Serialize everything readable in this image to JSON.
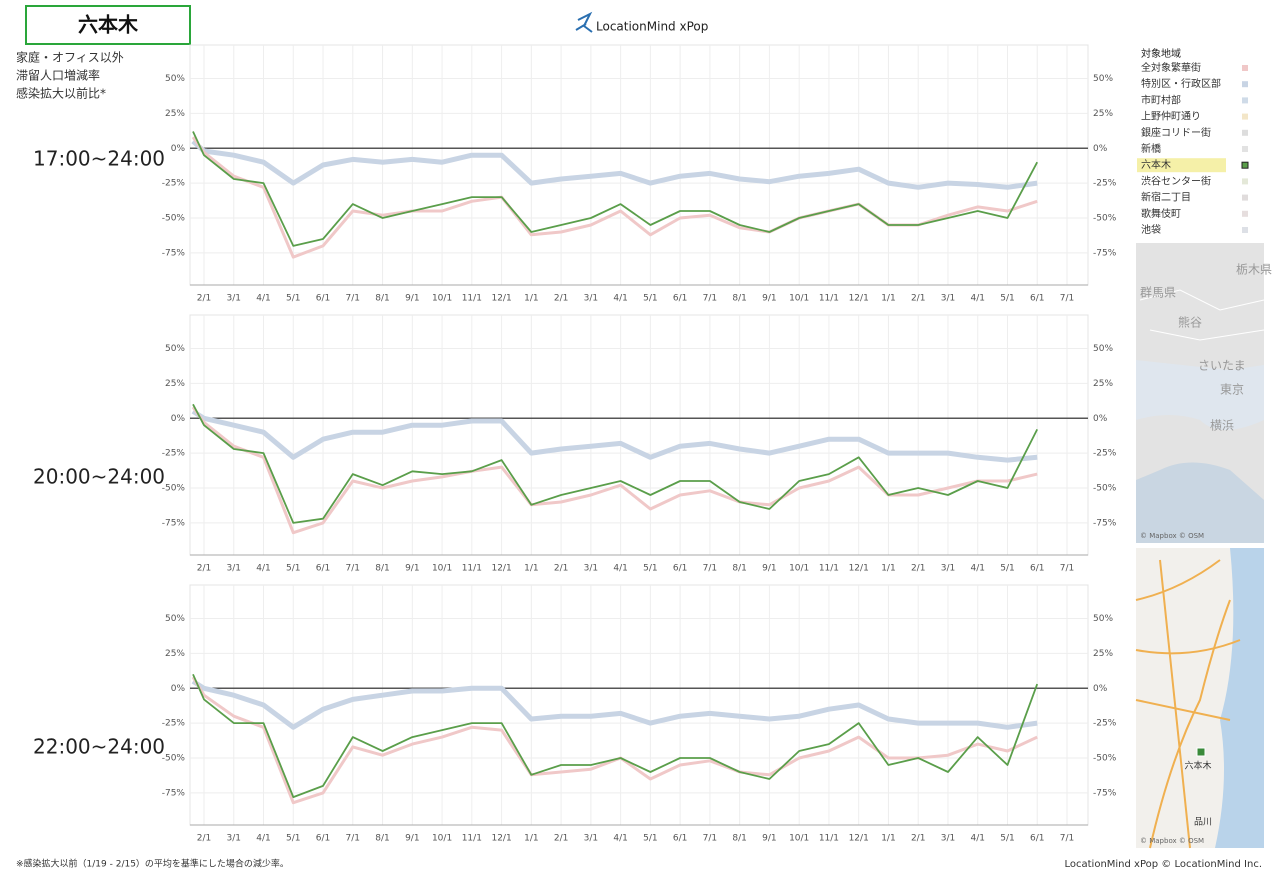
{
  "header": {
    "title": "六本木",
    "logo": "LocationMind xPop",
    "subtitle_lines": [
      "家庭・オフィス以外",
      "滞留人口増減率",
      "感染拡大以前比*"
    ]
  },
  "footer": {
    "note": "※感染拡大以前（1/19 - 2/15）の平均を基準にした場合の減少率。",
    "credit": "LocationMind xPop © LocationMind Inc."
  },
  "legend": {
    "title": "対象地域",
    "highlight": "六本木",
    "items": [
      {
        "name": "全対象繁華街",
        "color": "#f0c8c8"
      },
      {
        "name": "特別区・行政区部",
        "color": "#c8d4e4"
      },
      {
        "name": "市町村部",
        "color": "#cfdbe8"
      },
      {
        "name": "上野仲町通り",
        "color": "#f3e6c8"
      },
      {
        "name": "銀座コリドー街",
        "color": "#dddddd"
      },
      {
        "name": "新橋",
        "color": "#e2e2e2"
      },
      {
        "name": "六本木",
        "color": "#5a9e4a"
      },
      {
        "name": "渋谷センター街",
        "color": "#e4e8d8"
      },
      {
        "name": "新宿二丁目",
        "color": "#e0dcdc"
      },
      {
        "name": "歌舞伎町",
        "color": "#e6dede"
      },
      {
        "name": "池袋",
        "color": "#dde0e6"
      }
    ]
  },
  "maps": [
    {
      "labels": [
        "栃木県",
        "群馬県",
        "熊谷",
        "さいたま",
        "東京",
        "横浜"
      ],
      "credit": "© Mapbox © OSM"
    },
    {
      "labels": [
        "六本木",
        "品川"
      ],
      "credit": "© Mapbox © OSM"
    }
  ],
  "chart_data": [
    {
      "type": "line",
      "label": "17:00~24:00",
      "ylim": [
        -98,
        74
      ],
      "yticks": [
        {
          "value": 50,
          "label": "50%"
        },
        {
          "value": 25,
          "label": "25%"
        },
        {
          "value": 0,
          "label": "0%"
        },
        {
          "value": -25,
          "label": "-25%"
        },
        {
          "value": -50,
          "label": "-50%"
        },
        {
          "value": -75,
          "label": "-75%"
        }
      ],
      "grid": true,
      "categories": [
        null,
        "2/1",
        "3/1",
        "4/1",
        "5/1",
        "6/1",
        "7/1",
        "8/1",
        "9/1",
        "10/1",
        "11/1",
        "12/1",
        "1/1",
        "2/1",
        "3/1",
        "4/1",
        "5/1",
        "6/1",
        "7/1",
        "8/1",
        "9/1",
        "10/1",
        "11/1",
        "12/1",
        "1/1",
        "2/1",
        "3/1",
        "4/1",
        "5/1",
        "6/1",
        "7/1"
      ],
      "series": [
        {
          "color": "#c8d4e4",
          "values": [
            5,
            -2,
            -5,
            -10,
            -25,
            -12,
            -8,
            -10,
            -8,
            -10,
            -5,
            -5,
            -25,
            -22,
            -20,
            -18,
            -25,
            -20,
            -18,
            -22,
            -24,
            -20,
            -18,
            -15,
            -25,
            -28,
            -25,
            -26,
            -28,
            -25,
            null
          ]
        },
        {
          "color": "#f0c8c8",
          "values": [
            8,
            -3,
            -20,
            -28,
            -78,
            -70,
            -45,
            -48,
            -45,
            -45,
            -38,
            -35,
            -62,
            -60,
            -55,
            -45,
            -62,
            -50,
            -48,
            -57,
            -60,
            -50,
            -45,
            -40,
            -55,
            -55,
            -48,
            -42,
            -45,
            -38,
            null
          ]
        },
        {
          "color": "#5a9e4a",
          "values": [
            12,
            -5,
            -22,
            -25,
            -70,
            -65,
            -40,
            -50,
            -45,
            -40,
            -35,
            -35,
            -60,
            -55,
            -50,
            -40,
            -55,
            -45,
            -45,
            -55,
            -60,
            -50,
            -45,
            -40,
            -55,
            -55,
            -50,
            -45,
            -50,
            -10,
            null
          ]
        }
      ]
    },
    {
      "type": "line",
      "label": "20:00~24:00",
      "ylim": [
        -98,
        74
      ],
      "yticks": [
        {
          "value": 50,
          "label": "50%"
        },
        {
          "value": 25,
          "label": "25%"
        },
        {
          "value": 0,
          "label": "0%"
        },
        {
          "value": -25,
          "label": "-25%"
        },
        {
          "value": -50,
          "label": "-50%"
        },
        {
          "value": -75,
          "label": "-75%"
        }
      ],
      "grid": true,
      "categories": [
        null,
        "2/1",
        "3/1",
        "4/1",
        "5/1",
        "6/1",
        "7/1",
        "8/1",
        "9/1",
        "10/1",
        "11/1",
        "12/1",
        "1/1",
        "2/1",
        "3/1",
        "4/1",
        "5/1",
        "6/1",
        "7/1",
        "8/1",
        "9/1",
        "10/1",
        "11/1",
        "12/1",
        "1/1",
        "2/1",
        "3/1",
        "4/1",
        "5/1",
        "6/1",
        "7/1"
      ],
      "series": [
        {
          "color": "#c8d4e4",
          "values": [
            5,
            0,
            -5,
            -10,
            -28,
            -15,
            -10,
            -10,
            -5,
            -5,
            -2,
            -2,
            -25,
            -22,
            -20,
            -18,
            -28,
            -20,
            -18,
            -22,
            -25,
            -20,
            -15,
            -15,
            -25,
            -25,
            -25,
            -28,
            -30,
            -28,
            null
          ]
        },
        {
          "color": "#f0c8c8",
          "values": [
            8,
            -3,
            -20,
            -28,
            -82,
            -75,
            -45,
            -50,
            -45,
            -42,
            -38,
            -35,
            -62,
            -60,
            -55,
            -48,
            -65,
            -55,
            -52,
            -60,
            -62,
            -50,
            -45,
            -35,
            -55,
            -55,
            -50,
            -45,
            -45,
            -40,
            null
          ]
        },
        {
          "color": "#5a9e4a",
          "values": [
            10,
            -5,
            -22,
            -25,
            -75,
            -72,
            -40,
            -48,
            -38,
            -40,
            -38,
            -30,
            -62,
            -55,
            -50,
            -45,
            -55,
            -45,
            -45,
            -60,
            -65,
            -45,
            -40,
            -28,
            -55,
            -50,
            -55,
            -45,
            -50,
            -8,
            null
          ]
        }
      ]
    },
    {
      "type": "line",
      "label": "22:00~24:00",
      "ylim": [
        -98,
        74
      ],
      "yticks": [
        {
          "value": 50,
          "label": "50%"
        },
        {
          "value": 25,
          "label": "25%"
        },
        {
          "value": 0,
          "label": "0%"
        },
        {
          "value": -25,
          "label": "-25%"
        },
        {
          "value": -50,
          "label": "-50%"
        },
        {
          "value": -75,
          "label": "-75%"
        }
      ],
      "grid": true,
      "categories": [
        null,
        "2/1",
        "3/1",
        "4/1",
        "5/1",
        "6/1",
        "7/1",
        "8/1",
        "9/1",
        "10/1",
        "11/1",
        "12/1",
        "1/1",
        "2/1",
        "3/1",
        "4/1",
        "5/1",
        "6/1",
        "7/1",
        "8/1",
        "9/1",
        "10/1",
        "11/1",
        "12/1",
        "1/1",
        "2/1",
        "3/1",
        "4/1",
        "5/1",
        "6/1",
        "7/1"
      ],
      "series": [
        {
          "color": "#c8d4e4",
          "values": [
            5,
            0,
            -5,
            -12,
            -28,
            -15,
            -8,
            -5,
            -2,
            -2,
            0,
            0,
            -22,
            -20,
            -20,
            -18,
            -25,
            -20,
            -18,
            -20,
            -22,
            -20,
            -15,
            -12,
            -22,
            -25,
            -25,
            -25,
            -28,
            -25,
            null
          ]
        },
        {
          "color": "#f0c8c8",
          "values": [
            8,
            -5,
            -20,
            -28,
            -82,
            -75,
            -42,
            -48,
            -40,
            -35,
            -28,
            -30,
            -62,
            -60,
            -58,
            -50,
            -65,
            -55,
            -52,
            -60,
            -62,
            -50,
            -45,
            -35,
            -50,
            -50,
            -48,
            -40,
            -45,
            -35,
            null
          ]
        },
        {
          "color": "#5a9e4a",
          "values": [
            10,
            -8,
            -25,
            -25,
            -78,
            -70,
            -35,
            -45,
            -35,
            -30,
            -25,
            -25,
            -62,
            -55,
            -55,
            -50,
            -60,
            -50,
            -50,
            -60,
            -65,
            -45,
            -40,
            -25,
            -55,
            -50,
            -60,
            -35,
            -55,
            3,
            null
          ]
        }
      ]
    }
  ]
}
